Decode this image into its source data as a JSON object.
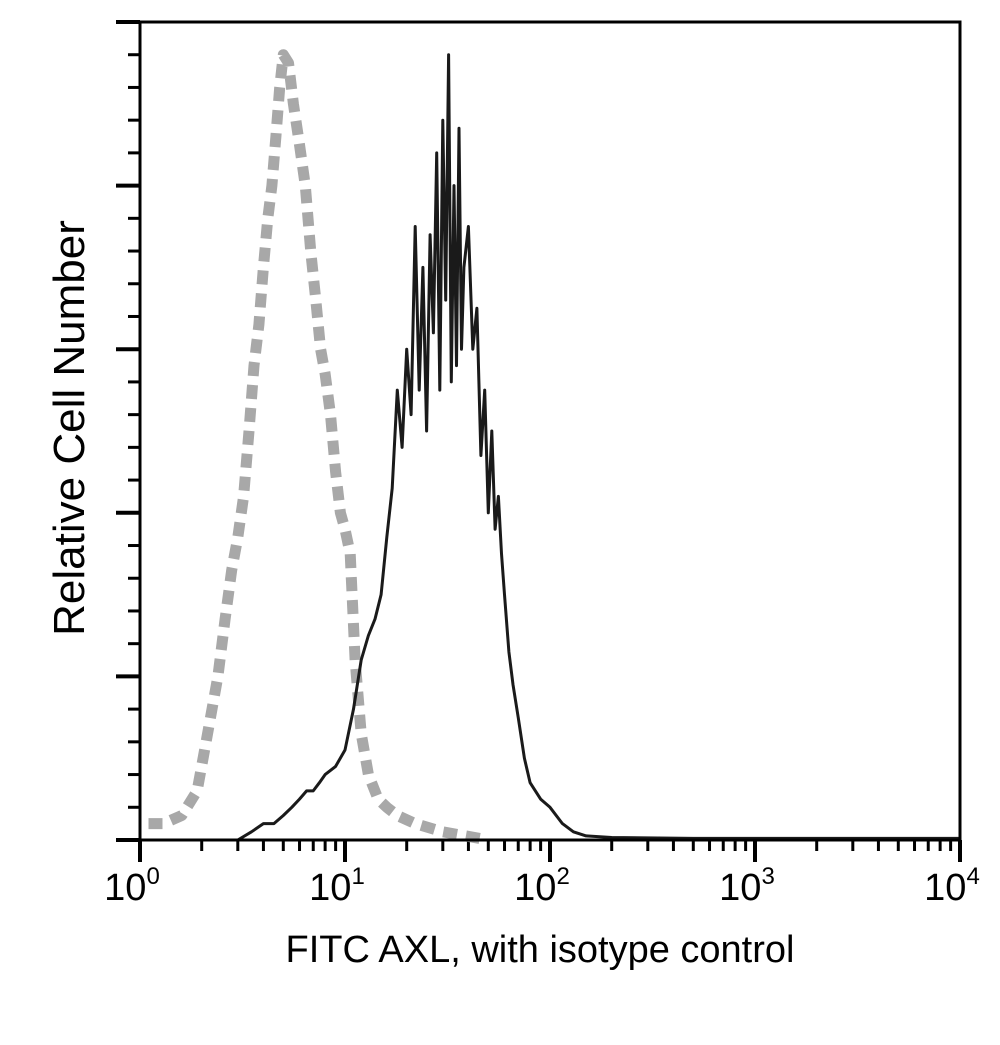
{
  "chart_data": {
    "type": "area",
    "xlabel": "FITC AXL, with isotype control",
    "ylabel": "Relative Cell Number",
    "x_scale": "log",
    "xlim": [
      1,
      10000
    ],
    "ylim": [
      0,
      100
    ],
    "x_ticks": [
      {
        "base": "10",
        "exp": "0"
      },
      {
        "base": "10",
        "exp": "1"
      },
      {
        "base": "10",
        "exp": "2"
      },
      {
        "base": "10",
        "exp": "3"
      },
      {
        "base": "10",
        "exp": "4"
      }
    ],
    "grid": false,
    "series": [
      {
        "style": "dashed",
        "color": "#a8a8a8",
        "x": [
          1.1,
          1.3,
          1.6,
          1.9,
          2.1,
          2.4,
          2.6,
          2.8,
          3.0,
          3.2,
          3.4,
          3.6,
          3.8,
          4.0,
          4.2,
          4.4,
          4.6,
          4.8,
          5.0,
          5.3,
          5.6,
          6.0,
          6.4,
          6.8,
          7.2,
          7.6,
          8.0,
          8.5,
          9.0,
          9.5,
          10.0,
          10.6,
          11.2,
          12.0,
          13.0,
          14.5,
          16.0,
          18.0,
          22.0,
          30.0,
          50.0
        ],
        "y": [
          2,
          2,
          3,
          6,
          12,
          20,
          27,
          33,
          37,
          42,
          50,
          58,
          63,
          70,
          76,
          80,
          86,
          92,
          96,
          95,
          90,
          85,
          80,
          72,
          66,
          60,
          57,
          52,
          45,
          40,
          38,
          35,
          22,
          13,
          8,
          5,
          4,
          3,
          2,
          1,
          0
        ]
      },
      {
        "style": "solid",
        "color": "#1a1a1a",
        "x": [
          1.5,
          2.0,
          2.5,
          3.0,
          3.5,
          4.0,
          4.5,
          5.0,
          5.5,
          6.0,
          6.5,
          7.0,
          7.5,
          8.0,
          9.0,
          10.0,
          11.0,
          12.0,
          13.0,
          14.0,
          15.0,
          16.0,
          17.0,
          18.0,
          19.0,
          20.0,
          21.0,
          22.0,
          23.0,
          24.0,
          25.0,
          26.0,
          27.0,
          28.0,
          29.0,
          30.0,
          31.0,
          32.0,
          33.0,
          34.0,
          35.0,
          36.0,
          37.0,
          38.0,
          40.0,
          42.0,
          44.0,
          46.0,
          48.0,
          50.0,
          52.0,
          54.0,
          56.0,
          58.0,
          60.0,
          63.0,
          66.0,
          70.0,
          75.0,
          80.0,
          90.0,
          100.0,
          115.0,
          130.0,
          150.0,
          200.0,
          500.0,
          1000.0,
          10000.0
        ],
        "y": [
          0,
          0,
          0,
          0,
          1,
          2,
          2,
          3,
          4,
          5,
          6,
          6,
          7,
          8,
          9,
          11,
          16,
          22,
          25,
          27,
          30,
          37,
          43,
          55,
          48,
          60,
          52,
          75,
          55,
          70,
          50,
          74,
          62,
          84,
          55,
          88,
          66,
          96,
          56,
          80,
          58,
          87,
          60,
          70,
          75,
          60,
          65,
          47,
          55,
          40,
          50,
          38,
          42,
          35,
          30,
          23,
          19,
          15,
          10,
          7,
          5,
          4,
          2,
          1,
          0.5,
          0.3,
          0.2,
          0.2,
          0.2
        ]
      }
    ]
  }
}
